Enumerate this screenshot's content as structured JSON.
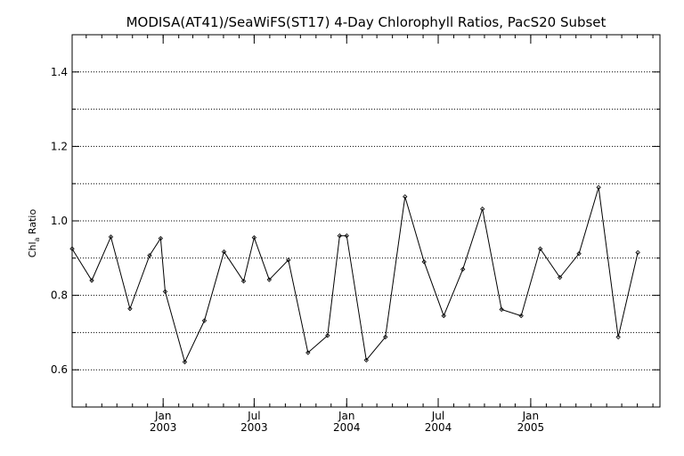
{
  "chart_data": {
    "type": "line",
    "title": "MODISA(AT41)/SeaWiFS(ST17) 4-Day Chlorophyll Ratios, PacS20 Subset",
    "ylabel": {
      "main": "Chl",
      "subscript": "a",
      "rest": " Ratio"
    },
    "ylim": [
      0.5,
      1.5
    ],
    "xlim": [
      "2002-07-04",
      "2005-09-15"
    ],
    "y_ticks": [
      {
        "value": 0.6,
        "label": "0.6"
      },
      {
        "value": 0.8,
        "label": "0.8"
      },
      {
        "value": 1.0,
        "label": "1.0"
      },
      {
        "value": 1.2,
        "label": "1.2"
      },
      {
        "value": 1.4,
        "label": "1.4"
      }
    ],
    "y_gridlines": [
      0.6,
      0.7,
      0.8,
      0.9,
      1.0,
      1.1,
      1.2,
      1.3,
      1.4
    ],
    "x_ticks": [
      {
        "date": "2003-01-01",
        "month": "Jan",
        "year": "2003"
      },
      {
        "date": "2003-07-01",
        "month": "Jul",
        "year": "2003"
      },
      {
        "date": "2004-01-01",
        "month": "Jan",
        "year": "2004"
      },
      {
        "date": "2004-07-01",
        "month": "Jul",
        "year": "2004"
      },
      {
        "date": "2005-01-01",
        "month": "Jan",
        "year": "2005"
      }
    ],
    "grid": true,
    "series": [
      {
        "points": [
          {
            "x": "2002-07-04",
            "y": 0.925
          },
          {
            "x": "2002-08-12",
            "y": 0.84
          },
          {
            "x": "2002-09-19",
            "y": 0.957
          },
          {
            "x": "2002-10-27",
            "y": 0.764
          },
          {
            "x": "2002-12-05",
            "y": 0.907
          },
          {
            "x": "2002-12-27",
            "y": 0.953
          },
          {
            "x": "2003-01-05",
            "y": 0.81
          },
          {
            "x": "2003-02-13",
            "y": 0.621
          },
          {
            "x": "2003-03-24",
            "y": 0.732
          },
          {
            "x": "2003-05-02",
            "y": 0.917
          },
          {
            "x": "2003-06-10",
            "y": 0.838
          },
          {
            "x": "2003-07-01",
            "y": 0.955
          },
          {
            "x": "2003-07-31",
            "y": 0.842
          },
          {
            "x": "2003-09-07",
            "y": 0.895
          },
          {
            "x": "2003-10-16",
            "y": 0.646
          },
          {
            "x": "2003-11-24",
            "y": 0.692
          },
          {
            "x": "2003-12-18",
            "y": 0.96
          },
          {
            "x": "2004-01-01",
            "y": 0.96
          },
          {
            "x": "2004-02-09",
            "y": 0.626
          },
          {
            "x": "2004-03-18",
            "y": 0.688
          },
          {
            "x": "2004-04-26",
            "y": 1.065
          },
          {
            "x": "2004-06-03",
            "y": 0.89
          },
          {
            "x": "2004-07-12",
            "y": 0.745
          },
          {
            "x": "2004-08-19",
            "y": 0.87
          },
          {
            "x": "2004-09-27",
            "y": 1.032
          },
          {
            "x": "2004-11-04",
            "y": 0.762
          },
          {
            "x": "2004-12-13",
            "y": 0.745
          },
          {
            "x": "2005-01-20",
            "y": 0.925
          },
          {
            "x": "2005-02-28",
            "y": 0.848
          },
          {
            "x": "2005-04-07",
            "y": 0.912
          },
          {
            "x": "2005-05-16",
            "y": 1.09
          },
          {
            "x": "2005-06-24",
            "y": 0.688
          },
          {
            "x": "2005-08-02",
            "y": 0.915
          }
        ]
      }
    ]
  }
}
